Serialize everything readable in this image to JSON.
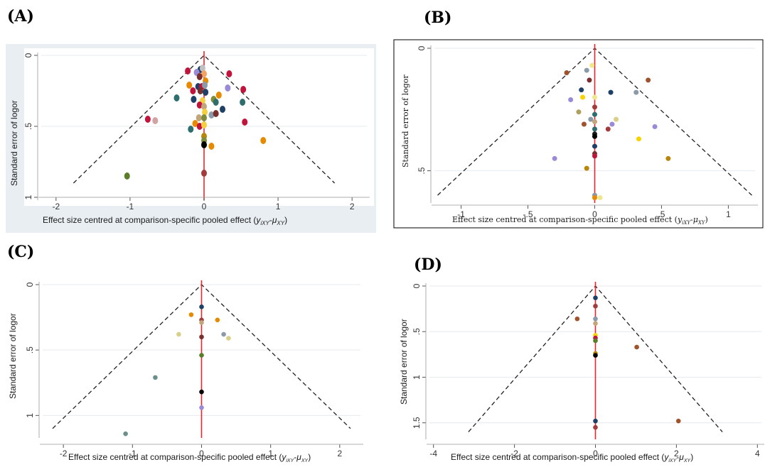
{
  "figure": {
    "labels": [
      "(A)",
      "(B)",
      "(C)",
      "(D)"
    ]
  },
  "colors": {
    "background_a": "#e8eef2",
    "plot_bg": "#ffffff",
    "grid": "#e6eaee",
    "zero_line": "#e8262b",
    "funnel": "#222222",
    "panel_b_border": "#000000"
  },
  "chart_data": [
    {
      "panel": "(A)",
      "type": "scatter",
      "xlabel_main": "Effect size centred at comparison-specific pooled effect (",
      "xlabel_sub": "y",
      "xlabel_tail": "iXY",
      "xlabel_mid": "-",
      "xlabel_mu": "μ",
      "xlabel_mutail": "XY",
      "xlabel_close": ")",
      "ylabel": "Standard error of logor",
      "xlim": [
        -2.2,
        2.2
      ],
      "ylim": [
        1.0,
        0.0
      ],
      "xticks": [
        -2,
        -1,
        0,
        1,
        2
      ],
      "xticklabels": [
        "-2",
        "-1",
        "0",
        "1",
        "2"
      ],
      "yticks": [
        0,
        0.5,
        1
      ],
      "yticklabels": [
        "0",
        ".5",
        "1"
      ],
      "funnel_max_se": 0.9,
      "grid": true,
      "points": [
        {
          "x": -0.05,
          "y": 0.1,
          "c": "#1e3f66"
        },
        {
          "x": -0.22,
          "y": 0.11,
          "c": "#c0143c"
        },
        {
          "x": -0.1,
          "y": 0.12,
          "c": "#9b8bd6"
        },
        {
          "x": -0.02,
          "y": 0.09,
          "c": "#c0c0c0"
        },
        {
          "x": 0.0,
          "y": 0.13,
          "c": "#f4a261"
        },
        {
          "x": 0.34,
          "y": 0.13,
          "c": "#c0143c"
        },
        {
          "x": -0.06,
          "y": 0.15,
          "c": "#7a2f2f"
        },
        {
          "x": 0.02,
          "y": 0.18,
          "c": "#e68a00"
        },
        {
          "x": -0.2,
          "y": 0.21,
          "c": "#e68a00"
        },
        {
          "x": -0.08,
          "y": 0.22,
          "c": "#1e3f66"
        },
        {
          "x": -0.03,
          "y": 0.22,
          "c": "#c0143c"
        },
        {
          "x": 0.01,
          "y": 0.21,
          "c": "#8a9aa8"
        },
        {
          "x": 0.32,
          "y": 0.23,
          "c": "#9b8bd6"
        },
        {
          "x": 0.53,
          "y": 0.24,
          "c": "#c0143c"
        },
        {
          "x": -0.15,
          "y": 0.25,
          "c": "#c0143c"
        },
        {
          "x": -0.05,
          "y": 0.25,
          "c": "#7a2f2f"
        },
        {
          "x": 0.02,
          "y": 0.26,
          "c": "#1e3f66"
        },
        {
          "x": 0.2,
          "y": 0.28,
          "c": "#e68a00"
        },
        {
          "x": -0.37,
          "y": 0.3,
          "c": "#2e6e6e"
        },
        {
          "x": -0.14,
          "y": 0.31,
          "c": "#1e3f66"
        },
        {
          "x": -0.02,
          "y": 0.32,
          "c": "#f4d03f"
        },
        {
          "x": 0.13,
          "y": 0.31,
          "c": "#7f8c3a"
        },
        {
          "x": 0.16,
          "y": 0.33,
          "c": "#2e6e6e"
        },
        {
          "x": 0.52,
          "y": 0.33,
          "c": "#2e6e6e"
        },
        {
          "x": -0.06,
          "y": 0.35,
          "c": "#c0143c"
        },
        {
          "x": 0.0,
          "y": 0.36,
          "c": "#c2a57a"
        },
        {
          "x": 0.25,
          "y": 0.38,
          "c": "#1e3f66"
        },
        {
          "x": 0.01,
          "y": 0.4,
          "c": "#f4d03f"
        },
        {
          "x": 0.1,
          "y": 0.42,
          "c": "#8a9aa8"
        },
        {
          "x": 0.16,
          "y": 0.41,
          "c": "#7a2f2f"
        },
        {
          "x": -0.07,
          "y": 0.44,
          "c": "#c2a57a"
        },
        {
          "x": 0.0,
          "y": 0.44,
          "c": "#7f8c3a"
        },
        {
          "x": -0.76,
          "y": 0.45,
          "c": "#c0143c"
        },
        {
          "x": -0.66,
          "y": 0.46,
          "c": "#d1a3a3"
        },
        {
          "x": 0.55,
          "y": 0.47,
          "c": "#c0143c"
        },
        {
          "x": -0.12,
          "y": 0.48,
          "c": "#e68a00"
        },
        {
          "x": -0.06,
          "y": 0.5,
          "c": "#c0143c"
        },
        {
          "x": 0.0,
          "y": 0.49,
          "c": "#f4d03f"
        },
        {
          "x": -0.18,
          "y": 0.52,
          "c": "#2e6e6e"
        },
        {
          "x": 0.0,
          "y": 0.57,
          "c": "#b8860b"
        },
        {
          "x": 0.0,
          "y": 0.6,
          "c": "#7f8c3a"
        },
        {
          "x": 0.0,
          "y": 0.63,
          "c": "#000000"
        },
        {
          "x": 0.1,
          "y": 0.64,
          "c": "#e68a00"
        },
        {
          "x": 0.8,
          "y": 0.6,
          "c": "#e68a00"
        },
        {
          "x": 0.0,
          "y": 0.83,
          "c": "#a23b3b"
        },
        {
          "x": -1.04,
          "y": 0.85,
          "c": "#5a7d2a"
        }
      ]
    },
    {
      "panel": "(B)",
      "type": "scatter",
      "xlabel_main": "Effect size centred at comparison-specific pooled effect (",
      "xlabel_sub": "y",
      "xlabel_tail": "iXY",
      "xlabel_mid": "-",
      "xlabel_mu": "μ",
      "xlabel_mutail": "XY",
      "xlabel_close": ")",
      "ylabel": "Standard error of logor",
      "xlim": [
        -1.2,
        1.2
      ],
      "ylim": [
        0.62,
        0.0
      ],
      "xticks": [
        -1,
        -0.5,
        0,
        0.5,
        1
      ],
      "xticklabels": [
        "-1",
        "-.5",
        "0",
        ".5",
        "1"
      ],
      "yticks": [
        0,
        0.5
      ],
      "yticklabels": [
        "0",
        ".5"
      ],
      "funnel_max_se": 0.6,
      "grid": true,
      "points": [
        {
          "x": -0.02,
          "y": 0.07,
          "c": "#f0e68c"
        },
        {
          "x": -0.06,
          "y": 0.09,
          "c": "#8a9aa8"
        },
        {
          "x": -0.21,
          "y": 0.1,
          "c": "#a0522d"
        },
        {
          "x": -0.04,
          "y": 0.13,
          "c": "#7a2f2f"
        },
        {
          "x": 0.4,
          "y": 0.13,
          "c": "#a0522d"
        },
        {
          "x": -0.1,
          "y": 0.17,
          "c": "#1e3f66"
        },
        {
          "x": 0.12,
          "y": 0.18,
          "c": "#1e3f66"
        },
        {
          "x": 0.31,
          "y": 0.18,
          "c": "#8a9aa8"
        },
        {
          "x": -0.09,
          "y": 0.2,
          "c": "#f7d400"
        },
        {
          "x": 0.0,
          "y": 0.2,
          "c": "#f0e68c"
        },
        {
          "x": -0.18,
          "y": 0.21,
          "c": "#9b8bd6"
        },
        {
          "x": 0.0,
          "y": 0.24,
          "c": "#a23b3b"
        },
        {
          "x": -0.12,
          "y": 0.26,
          "c": "#b0a060"
        },
        {
          "x": 0.0,
          "y": 0.27,
          "c": "#2e6e6e"
        },
        {
          "x": -0.03,
          "y": 0.29,
          "c": "#8a9aa8"
        },
        {
          "x": 0.16,
          "y": 0.29,
          "c": "#d8d08a"
        },
        {
          "x": 0.0,
          "y": 0.3,
          "c": "#c2a57a"
        },
        {
          "x": -0.08,
          "y": 0.31,
          "c": "#a0522d"
        },
        {
          "x": 0.13,
          "y": 0.31,
          "c": "#9b8bd6"
        },
        {
          "x": 0.45,
          "y": 0.32,
          "c": "#9b8bd6"
        },
        {
          "x": 0.0,
          "y": 0.33,
          "c": "#2e6e6e"
        },
        {
          "x": 0.1,
          "y": 0.33,
          "c": "#a23b3b"
        },
        {
          "x": 0.0,
          "y": 0.35,
          "c": "#1a1a1a"
        },
        {
          "x": 0.0,
          "y": 0.36,
          "c": "#000000"
        },
        {
          "x": 0.33,
          "y": 0.37,
          "c": "#f7d400"
        },
        {
          "x": 0.0,
          "y": 0.4,
          "c": "#1e3f66"
        },
        {
          "x": 0.0,
          "y": 0.43,
          "c": "#7a2f2f"
        },
        {
          "x": 0.0,
          "y": 0.44,
          "c": "#c0143c"
        },
        {
          "x": -0.3,
          "y": 0.45,
          "c": "#9b8bd6"
        },
        {
          "x": 0.55,
          "y": 0.45,
          "c": "#b8860b"
        },
        {
          "x": -0.06,
          "y": 0.49,
          "c": "#b8860b"
        },
        {
          "x": 0.0,
          "y": 0.6,
          "c": "#8a9aa8"
        },
        {
          "x": 0.0,
          "y": 0.61,
          "c": "#e68a00"
        },
        {
          "x": 0.04,
          "y": 0.61,
          "c": "#f0e68c"
        }
      ]
    },
    {
      "panel": "(C)",
      "type": "scatter",
      "xlabel_main": "Effect size centred at comparison-specific pooled effect (",
      "xlabel_sub": "y",
      "xlabel_tail": "iXY",
      "xlabel_mid": "-",
      "xlabel_mu": "μ",
      "xlabel_mutail": "XY",
      "xlabel_close": ")",
      "ylabel": "Standard error of logor",
      "xlim": [
        -2.3,
        2.3
      ],
      "ylim": [
        1.15,
        0.0
      ],
      "xticks": [
        -2,
        -1,
        0,
        1,
        2
      ],
      "xticklabels": [
        "-2",
        "-1",
        "0",
        "1",
        "2"
      ],
      "yticks": [
        0,
        0.5,
        1
      ],
      "yticklabels": [
        "0",
        ".5",
        "1"
      ],
      "funnel_max_se": 1.1,
      "grid": true,
      "points": [
        {
          "x": 0.0,
          "y": 0.17,
          "c": "#1e3f66"
        },
        {
          "x": -0.15,
          "y": 0.23,
          "c": "#e68a00"
        },
        {
          "x": 0.0,
          "y": 0.27,
          "c": "#a23b3b"
        },
        {
          "x": 0.23,
          "y": 0.27,
          "c": "#e68a00"
        },
        {
          "x": 0.0,
          "y": 0.29,
          "c": "#c2a57a"
        },
        {
          "x": -0.33,
          "y": 0.38,
          "c": "#d8d08a"
        },
        {
          "x": 0.32,
          "y": 0.38,
          "c": "#8a9aa8"
        },
        {
          "x": 0.39,
          "y": 0.41,
          "c": "#d8d08a"
        },
        {
          "x": 0.0,
          "y": 0.4,
          "c": "#7a2f2f"
        },
        {
          "x": 0.0,
          "y": 0.54,
          "c": "#5a7d2a"
        },
        {
          "x": -0.67,
          "y": 0.71,
          "c": "#6b8f8a"
        },
        {
          "x": 0.0,
          "y": 0.82,
          "c": "#000000"
        },
        {
          "x": 0.0,
          "y": 0.94,
          "c": "#9b8bd6"
        },
        {
          "x": -1.1,
          "y": 1.14,
          "c": "#6b8f8a"
        }
      ]
    },
    {
      "panel": "(D)",
      "type": "scatter",
      "xlabel_main": "Effect size centred at comparison-specific pooled effect (",
      "xlabel_sub": "y",
      "xlabel_tail": "iXY",
      "xlabel_mid": "-",
      "xlabel_mu": "μ",
      "xlabel_mutail": "XY",
      "xlabel_close": ")",
      "ylabel": "Standard error of logor",
      "xlim": [
        -4.1,
        4.1
      ],
      "ylim": [
        1.65,
        0.0
      ],
      "xticks": [
        -4,
        -2,
        0,
        2,
        4
      ],
      "xticklabels": [
        "-4",
        "-2",
        "0",
        "2",
        "4"
      ],
      "yticks": [
        0,
        0.5,
        1,
        1.5
      ],
      "yticklabels": [
        "0",
        ".5",
        "1",
        "1.5"
      ],
      "funnel_max_se": 1.6,
      "grid": true,
      "points": [
        {
          "x": 0.0,
          "y": 0.13,
          "c": "#1e3f66"
        },
        {
          "x": 0.0,
          "y": 0.22,
          "c": "#a23b3b"
        },
        {
          "x": -0.45,
          "y": 0.36,
          "c": "#a0522d"
        },
        {
          "x": 0.0,
          "y": 0.36,
          "c": "#8a9aa8"
        },
        {
          "x": 0.0,
          "y": 0.41,
          "c": "#c2a57a"
        },
        {
          "x": 0.0,
          "y": 0.54,
          "c": "#f7d400"
        },
        {
          "x": 0.0,
          "y": 0.57,
          "c": "#c0143c"
        },
        {
          "x": 0.0,
          "y": 0.6,
          "c": "#5a7d2a"
        },
        {
          "x": 1.02,
          "y": 0.67,
          "c": "#a0522d"
        },
        {
          "x": 0.0,
          "y": 0.74,
          "c": "#b8860b"
        },
        {
          "x": 0.0,
          "y": 0.76,
          "c": "#000000"
        },
        {
          "x": 0.0,
          "y": 1.48,
          "c": "#1e3f66"
        },
        {
          "x": 2.05,
          "y": 1.48,
          "c": "#a0522d"
        },
        {
          "x": 0.0,
          "y": 1.55,
          "c": "#a23b3b"
        }
      ]
    }
  ]
}
